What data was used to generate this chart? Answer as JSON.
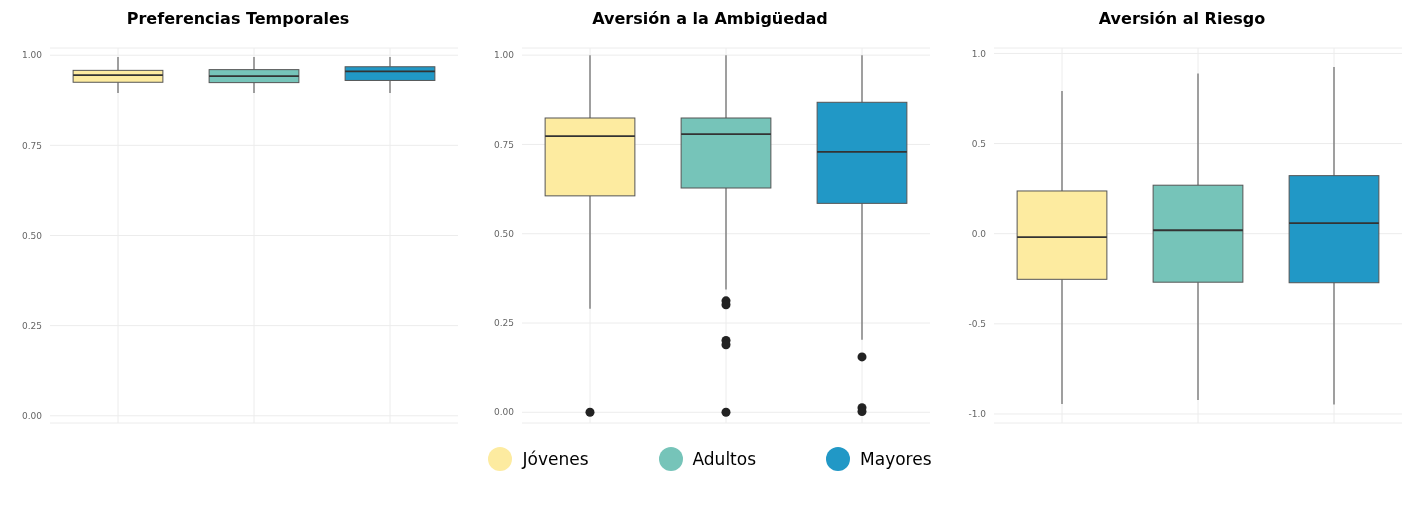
{
  "chart_data": [
    {
      "type": "box",
      "title": "Preferencias Temporales",
      "categories": [
        null
      ],
      "ylim": [
        -0.02,
        1.02
      ],
      "yticks": [
        {
          "value": 0,
          "label": "0.00"
        },
        {
          "value": 0.25,
          "label": "0.25"
        },
        {
          "value": 0.5,
          "label": "0.50"
        },
        {
          "value": 0.75,
          "label": "0.75"
        },
        {
          "value": 1,
          "label": "1.00"
        }
      ],
      "grid": true,
      "series": [
        {
          "color": "#fdeba0",
          "boxes": [
            {
              "low": 0.895,
              "q1": 0.925,
              "median": 0.945,
              "q3": 0.958,
              "high": 0.995
            }
          ]
        },
        {
          "color": "#76c4b9",
          "boxes": [
            {
              "low": 0.895,
              "q1": 0.924,
              "median": 0.942,
              "q3": 0.96,
              "high": 0.995
            }
          ]
        },
        {
          "color": "#2198c6",
          "boxes": [
            {
              "low": 0.895,
              "q1": 0.93,
              "median": 0.955,
              "q3": 0.968,
              "high": 0.995
            }
          ]
        }
      ]
    },
    {
      "type": "box",
      "title": "Aversión a la Ambigüedad",
      "categories": [
        null
      ],
      "ylim": [
        -0.03,
        1.02
      ],
      "yticks": [
        {
          "value": 0,
          "label": "0.00"
        },
        {
          "value": 0.25,
          "label": "0.25"
        },
        {
          "value": 0.5,
          "label": "0.50"
        },
        {
          "value": 0.75,
          "label": "0.75"
        },
        {
          "value": 1,
          "label": "1.00"
        }
      ],
      "grid": true,
      "legend": "bottom",
      "series": [
        {
          "name": "Jóvenes",
          "color": "#fdeba0",
          "boxes": [
            {
              "low": 0.29,
              "q1": 0.606,
              "median": 0.773,
              "q3": 0.824,
              "high": 1.0,
              "outliers": [
                0.0
              ]
            }
          ]
        },
        {
          "name": "Adultos",
          "color": "#76c4b9",
          "boxes": [
            {
              "low": 0.344,
              "q1": 0.628,
              "median": 0.779,
              "q3": 0.824,
              "high": 1.0,
              "outliers": [
                0.312,
                0.301,
                0.201,
                0.189,
                0.0
              ]
            }
          ]
        },
        {
          "name": "Mayores",
          "color": "#2198c6",
          "boxes": [
            {
              "low": 0.203,
              "q1": 0.585,
              "median": 0.729,
              "q3": 0.868,
              "high": 1.0,
              "outliers": [
                0.155,
                0.013,
                0.002
              ]
            }
          ]
        }
      ]
    },
    {
      "type": "box",
      "title": "Aversión al Riesgo",
      "categories": [
        null
      ],
      "ylim": [
        -1.05,
        1.03
      ],
      "yticks": [
        {
          "value": -1,
          "label": "-1.0"
        },
        {
          "value": -0.5,
          "label": "-0.5"
        },
        {
          "value": 0,
          "label": "0.0"
        },
        {
          "value": 0.5,
          "label": "0.5"
        },
        {
          "value": 1,
          "label": "1.0"
        }
      ],
      "grid": true,
      "series": [
        {
          "color": "#fdeba0",
          "boxes": [
            {
              "low": -0.944,
              "q1": -0.253,
              "median": -0.019,
              "q3": 0.237,
              "high": 0.792
            }
          ]
        },
        {
          "color": "#76c4b9",
          "boxes": [
            {
              "low": -0.922,
              "q1": -0.269,
              "median": 0.019,
              "q3": 0.269,
              "high": 0.889
            }
          ]
        },
        {
          "color": "#2198c6",
          "boxes": [
            {
              "low": -0.947,
              "q1": -0.272,
              "median": 0.059,
              "q3": 0.322,
              "high": 0.924
            }
          ]
        }
      ]
    }
  ]
}
